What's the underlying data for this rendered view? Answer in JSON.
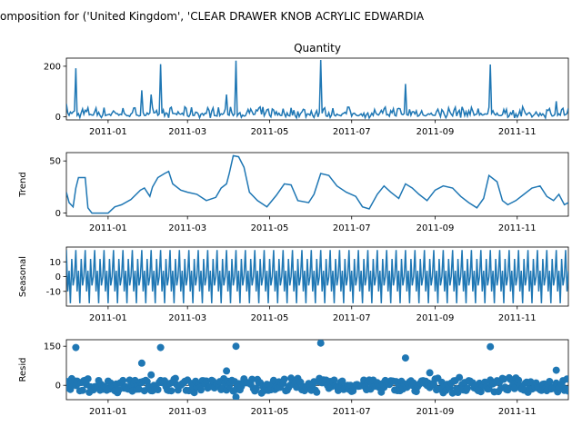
{
  "figure": {
    "suptitle": "omposition for ('United Kingdom', 'CLEAR DRAWER KNOB ACRYLIC EDWARDIA"
  },
  "chart_data": [
    {
      "id": "observed",
      "type": "line",
      "title": "Quantity",
      "ylabel": "",
      "xlabel": "",
      "x_start": "2010-12-01",
      "x_end": "2011-12-09",
      "xticks": [
        "2011-01",
        "2011-03",
        "2011-05",
        "2011-07",
        "2011-09",
        "2011-11"
      ],
      "yticks": [
        0,
        200
      ],
      "ylim": [
        -12,
        232
      ],
      "color": "#1f77b4",
      "spikes": [
        {
          "date": "2010-12-01",
          "value": 52
        },
        {
          "date": "2010-12-08",
          "value": 192
        },
        {
          "date": "2011-01-26",
          "value": 105
        },
        {
          "date": "2011-02-02",
          "value": 88
        },
        {
          "date": "2011-02-09",
          "value": 208
        },
        {
          "date": "2011-03-30",
          "value": 88
        },
        {
          "date": "2011-04-06",
          "value": 222
        },
        {
          "date": "2011-06-08",
          "value": 225
        },
        {
          "date": "2011-08-10",
          "value": 130
        },
        {
          "date": "2011-10-12",
          "value": 207
        },
        {
          "date": "2011-11-30",
          "value": 62
        }
      ],
      "base_level": 10,
      "base_range": [
        -5,
        40
      ]
    },
    {
      "id": "trend",
      "type": "line",
      "title": "",
      "ylabel": "Trend",
      "xlabel": "",
      "x_start": "2010-12-01",
      "x_end": "2011-12-09",
      "xticks": [
        "2011-01",
        "2011-03",
        "2011-05",
        "2011-07",
        "2011-09",
        "2011-11"
      ],
      "yticks": [
        0,
        50
      ],
      "ylim": [
        -3,
        58
      ],
      "color": "#1f77b4",
      "points": [
        [
          "2010-12-01",
          20
        ],
        [
          "2010-12-03",
          10
        ],
        [
          "2010-12-06",
          6
        ],
        [
          "2010-12-08",
          24
        ],
        [
          "2010-12-10",
          34
        ],
        [
          "2010-12-15",
          34
        ],
        [
          "2010-12-17",
          5
        ],
        [
          "2010-12-20",
          0
        ],
        [
          "2011-01-01",
          0
        ],
        [
          "2011-01-06",
          6
        ],
        [
          "2011-01-11",
          8
        ],
        [
          "2011-01-18",
          13
        ],
        [
          "2011-01-25",
          22
        ],
        [
          "2011-01-28",
          24
        ],
        [
          "2011-02-01",
          16
        ],
        [
          "2011-02-03",
          25
        ],
        [
          "2011-02-07",
          34
        ],
        [
          "2011-02-12",
          38
        ],
        [
          "2011-02-15",
          40
        ],
        [
          "2011-02-18",
          28
        ],
        [
          "2011-02-24",
          22
        ],
        [
          "2011-03-01",
          20
        ],
        [
          "2011-03-08",
          18
        ],
        [
          "2011-03-15",
          12
        ],
        [
          "2011-03-22",
          15
        ],
        [
          "2011-03-26",
          24
        ],
        [
          "2011-03-30",
          28
        ],
        [
          "2011-04-01",
          38
        ],
        [
          "2011-04-04",
          55
        ],
        [
          "2011-04-08",
          54
        ],
        [
          "2011-04-12",
          44
        ],
        [
          "2011-04-16",
          20
        ],
        [
          "2011-04-22",
          12
        ],
        [
          "2011-04-29",
          6
        ],
        [
          "2011-05-06",
          17
        ],
        [
          "2011-05-12",
          28
        ],
        [
          "2011-05-17",
          27
        ],
        [
          "2011-05-22",
          12
        ],
        [
          "2011-05-30",
          10
        ],
        [
          "2011-06-03",
          18
        ],
        [
          "2011-06-08",
          38
        ],
        [
          "2011-06-14",
          36
        ],
        [
          "2011-06-20",
          26
        ],
        [
          "2011-06-27",
          20
        ],
        [
          "2011-07-04",
          16
        ],
        [
          "2011-07-09",
          6
        ],
        [
          "2011-07-14",
          4
        ],
        [
          "2011-07-20",
          18
        ],
        [
          "2011-07-25",
          26
        ],
        [
          "2011-07-30",
          20
        ],
        [
          "2011-08-05",
          14
        ],
        [
          "2011-08-10",
          28
        ],
        [
          "2011-08-15",
          24
        ],
        [
          "2011-08-20",
          18
        ],
        [
          "2011-08-26",
          12
        ],
        [
          "2011-09-01",
          22
        ],
        [
          "2011-09-07",
          26
        ],
        [
          "2011-09-14",
          24
        ],
        [
          "2011-09-20",
          16
        ],
        [
          "2011-09-26",
          10
        ],
        [
          "2011-10-02",
          5
        ],
        [
          "2011-10-07",
          14
        ],
        [
          "2011-10-11",
          36
        ],
        [
          "2011-10-17",
          30
        ],
        [
          "2011-10-21",
          12
        ],
        [
          "2011-10-25",
          8
        ],
        [
          "2011-10-31",
          12
        ],
        [
          "2011-11-06",
          18
        ],
        [
          "2011-11-12",
          24
        ],
        [
          "2011-11-18",
          26
        ],
        [
          "2011-11-23",
          16
        ],
        [
          "2011-11-28",
          12
        ],
        [
          "2011-12-02",
          18
        ],
        [
          "2011-12-06",
          8
        ],
        [
          "2011-12-09",
          10
        ]
      ]
    },
    {
      "id": "seasonal",
      "type": "line",
      "title": "",
      "ylabel": "Seasonal",
      "xlabel": "",
      "x_start": "2010-12-01",
      "x_end": "2011-12-09",
      "xticks": [
        "2011-01",
        "2011-03",
        "2011-05",
        "2011-07",
        "2011-09",
        "2011-11"
      ],
      "yticks": [
        -10,
        0,
        10
      ],
      "ylim": [
        -20,
        20
      ],
      "color": "#1f77b4",
      "pattern": [
        18,
        -10,
        4,
        -18,
        12,
        -6,
        0
      ],
      "pattern_period_days": 7
    },
    {
      "id": "resid",
      "type": "scatter",
      "title": "",
      "ylabel": "Resid",
      "xlabel": "",
      "x_start": "2010-12-01",
      "x_end": "2011-12-09",
      "xticks": [
        "2011-01",
        "2011-03",
        "2011-05",
        "2011-07",
        "2011-09",
        "2011-11"
      ],
      "yticks": [
        0,
        150
      ],
      "ylim": [
        -55,
        175
      ],
      "color": "#1f77b4",
      "outliers": [
        {
          "date": "2010-12-08",
          "value": 145
        },
        {
          "date": "2011-01-26",
          "value": 85
        },
        {
          "date": "2011-02-02",
          "value": 40
        },
        {
          "date": "2011-02-09",
          "value": 145
        },
        {
          "date": "2011-03-30",
          "value": 55
        },
        {
          "date": "2011-04-06",
          "value": 150
        },
        {
          "date": "2011-04-06",
          "value": -45
        },
        {
          "date": "2011-06-08",
          "value": 162
        },
        {
          "date": "2011-08-10",
          "value": 105
        },
        {
          "date": "2011-08-28",
          "value": 48
        },
        {
          "date": "2011-10-12",
          "value": 148
        },
        {
          "date": "2011-11-30",
          "value": 58
        }
      ],
      "noise_range": [
        -30,
        30
      ]
    }
  ]
}
